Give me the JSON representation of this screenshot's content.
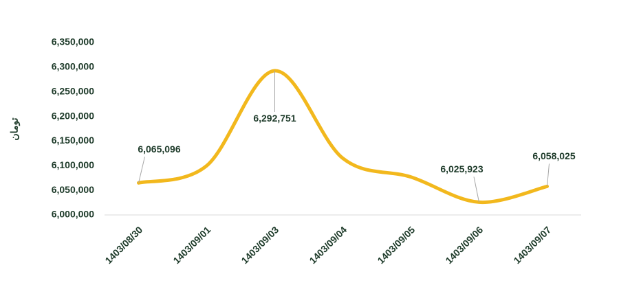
{
  "chart_data": {
    "type": "line",
    "y_label": "تومان",
    "x": [
      "1403/08/30",
      "1403/09/01",
      "1403/09/03",
      "1403/09/04",
      "1403/09/05",
      "1403/09/06",
      "1403/09/07"
    ],
    "series": [
      {
        "color": "#f2b81d",
        "values": [
          6065096,
          6100000,
          6292751,
          6115000,
          6077000,
          6025923,
          6058025
        ],
        "value_labels": [
          "6,065,096",
          null,
          "6,292,751",
          null,
          null,
          "6,025,923",
          "6,058,025"
        ]
      }
    ],
    "ylim": [
      6000000,
      6350000
    ],
    "yticks": [
      {
        "value": 6000000,
        "label": "6,000,000"
      },
      {
        "value": 6050000,
        "label": "6,050,000"
      },
      {
        "value": 6100000,
        "label": "6,100,000"
      },
      {
        "value": 6150000,
        "label": "6,150,000"
      },
      {
        "value": 6200000,
        "label": "6,200,000"
      },
      {
        "value": 6250000,
        "label": "6,250,000"
      },
      {
        "value": 6300000,
        "label": "6,300,000"
      },
      {
        "value": 6350000,
        "label": "6,350,000"
      }
    ],
    "grid": false
  }
}
